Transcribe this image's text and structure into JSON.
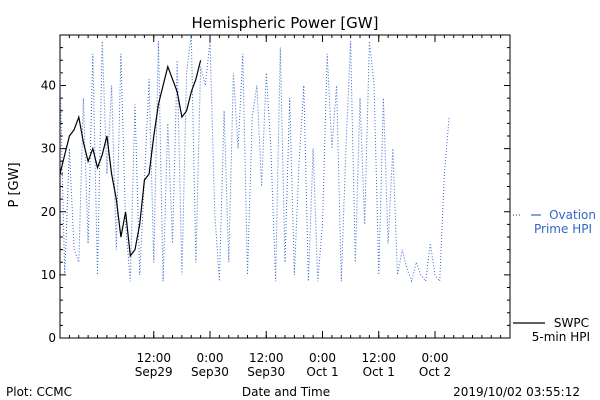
{
  "chart_data": {
    "type": "line",
    "title": "Hemispheric Power [GW]",
    "xlabel": "Date and Time",
    "ylabel": "P [GW]",
    "xlim": [
      "2019-09-28T16:00",
      "2019-10-02T16:00"
    ],
    "ylim": [
      0,
      48
    ],
    "yticks": [
      0,
      10,
      20,
      30,
      40
    ],
    "xticks": [
      {
        "t": "2019-09-29T12:00",
        "line1": "12:00",
        "line2": "Sep29"
      },
      {
        "t": "2019-09-30T00:00",
        "line1": "0:00",
        "line2": "Sep30"
      },
      {
        "t": "2019-09-30T12:00",
        "line1": "12:00",
        "line2": "Sep30"
      },
      {
        "t": "2019-10-01T00:00",
        "line1": "0:00",
        "line2": "Oct 1"
      },
      {
        "t": "2019-10-01T12:00",
        "line1": "12:00",
        "line2": "Oct 1"
      },
      {
        "t": "2019-10-02T00:00",
        "line1": "0:00",
        "line2": "Oct 2"
      }
    ],
    "grid": false,
    "series": [
      {
        "name": "SWPC 5-min HPI",
        "style": "solid",
        "color": "#000000",
        "x": [
          "2019-09-28T16:00",
          "2019-09-28T17:00",
          "2019-09-28T18:00",
          "2019-09-28T19:00",
          "2019-09-28T20:00",
          "2019-09-28T21:00",
          "2019-09-28T22:00",
          "2019-09-28T23:00",
          "2019-09-29T00:00",
          "2019-09-29T01:00",
          "2019-09-29T02:00",
          "2019-09-29T03:00",
          "2019-09-29T04:00",
          "2019-09-29T05:00",
          "2019-09-29T06:00",
          "2019-09-29T07:00",
          "2019-09-29T08:00",
          "2019-09-29T09:00",
          "2019-09-29T10:00",
          "2019-09-29T11:00",
          "2019-09-29T12:00",
          "2019-09-29T13:00",
          "2019-09-29T14:00",
          "2019-09-29T15:00",
          "2019-09-29T16:00",
          "2019-09-29T17:00",
          "2019-09-29T18:00",
          "2019-09-29T19:00",
          "2019-09-29T20:00",
          "2019-09-29T21:00",
          "2019-09-29T22:00",
          "2019-09-29T23:00",
          "2019-09-30T00:00"
        ],
        "y": [
          26,
          29,
          32,
          33,
          35,
          31,
          28,
          30,
          27,
          29,
          32,
          26,
          22,
          16,
          20,
          13,
          14,
          18,
          25,
          26,
          32,
          37,
          40,
          43,
          41,
          39,
          35,
          36,
          39,
          41,
          44,
          null,
          null
        ]
      },
      {
        "name": "Ovation Prime HPI",
        "style": "dotted",
        "color": "#3366cc",
        "x": [
          "2019-09-28T16:00",
          "2019-09-28T17:00",
          "2019-09-28T18:00",
          "2019-09-28T19:00",
          "2019-09-28T20:00",
          "2019-09-28T21:00",
          "2019-09-28T22:00",
          "2019-09-28T23:00",
          "2019-09-29T00:00",
          "2019-09-29T01:00",
          "2019-09-29T02:00",
          "2019-09-29T03:00",
          "2019-09-29T04:00",
          "2019-09-29T05:00",
          "2019-09-29T06:00",
          "2019-09-29T07:00",
          "2019-09-29T08:00",
          "2019-09-29T09:00",
          "2019-09-29T10:00",
          "2019-09-29T11:00",
          "2019-09-29T12:00",
          "2019-09-29T13:00",
          "2019-09-29T14:00",
          "2019-09-29T15:00",
          "2019-09-29T16:00",
          "2019-09-29T17:00",
          "2019-09-29T18:00",
          "2019-09-29T19:00",
          "2019-09-29T20:00",
          "2019-09-29T21:00",
          "2019-09-29T22:00",
          "2019-09-29T23:00",
          "2019-09-30T00:00",
          "2019-09-30T01:00",
          "2019-09-30T02:00",
          "2019-09-30T03:00",
          "2019-09-30T04:00",
          "2019-09-30T05:00",
          "2019-09-30T06:00",
          "2019-09-30T07:00",
          "2019-09-30T08:00",
          "2019-09-30T09:00",
          "2019-09-30T10:00",
          "2019-09-30T11:00",
          "2019-09-30T12:00",
          "2019-09-30T13:00",
          "2019-09-30T14:00",
          "2019-09-30T15:00",
          "2019-09-30T16:00",
          "2019-09-30T17:00",
          "2019-09-30T18:00",
          "2019-09-30T19:00",
          "2019-09-30T20:00",
          "2019-09-30T21:00",
          "2019-09-30T22:00",
          "2019-09-30T23:00",
          "2019-10-01T00:00",
          "2019-10-01T01:00",
          "2019-10-01T02:00",
          "2019-10-01T03:00",
          "2019-10-01T04:00",
          "2019-10-01T05:00",
          "2019-10-01T06:00",
          "2019-10-01T07:00",
          "2019-10-01T08:00",
          "2019-10-01T09:00",
          "2019-10-01T10:00",
          "2019-10-01T11:00",
          "2019-10-01T12:00",
          "2019-10-01T13:00",
          "2019-10-01T14:00",
          "2019-10-01T15:00",
          "2019-10-01T16:00",
          "2019-10-01T17:00",
          "2019-10-01T18:00",
          "2019-10-01T19:00",
          "2019-10-01T20:00",
          "2019-10-01T21:00",
          "2019-10-01T22:00",
          "2019-10-01T23:00",
          "2019-10-02T00:00",
          "2019-10-02T01:00",
          "2019-10-02T02:00",
          "2019-10-02T03:00"
        ],
        "y": [
          42,
          10,
          30,
          14,
          12,
          38,
          15,
          45,
          10,
          47,
          26,
          40,
          14,
          45,
          18,
          9,
          37,
          10,
          25,
          41,
          12,
          47,
          9,
          34,
          15,
          44,
          10,
          42,
          48,
          12,
          43,
          40,
          47,
          20,
          9,
          36,
          12,
          42,
          30,
          45,
          10,
          35,
          40,
          24,
          42,
          30,
          9,
          46,
          12,
          38,
          10,
          28,
          40,
          9,
          30,
          9,
          18,
          45,
          30,
          40,
          9,
          30,
          47,
          12,
          38,
          18,
          47,
          40,
          10,
          38,
          15,
          30,
          10,
          14,
          11,
          9,
          12,
          10,
          9,
          15,
          10,
          9,
          26,
          35
        ]
      }
    ],
    "legend": [
      {
        "line1": "SWPC",
        "line2": "5-min HPI",
        "color": "#000000",
        "style": "solid"
      },
      {
        "line1": "Ovation",
        "line2": "Prime HPI",
        "color": "#3366cc",
        "style": "dotted"
      }
    ],
    "legend_placement": "right"
  },
  "footer": {
    "left": "Plot: CCMC",
    "center": "Date and Time",
    "right": "2019/10/02 03:55:12"
  }
}
